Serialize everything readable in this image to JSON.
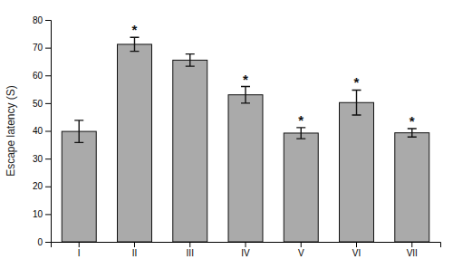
{
  "chart_data": {
    "type": "bar",
    "categories": [
      "I",
      "II",
      "III",
      "IV",
      "V",
      "VI",
      "VII"
    ],
    "values": [
      39.8,
      71.2,
      65.5,
      53.0,
      39.2,
      50.2,
      39.3
    ],
    "errors": [
      4.0,
      2.5,
      2.2,
      3.0,
      2.0,
      4.5,
      1.5
    ],
    "significance": [
      null,
      "*",
      null,
      "*",
      "*",
      "*",
      "*"
    ],
    "color": "#aaaaaa",
    "ylabel": "Escape latency (S)",
    "ylim": [
      0,
      80
    ],
    "yticks": [
      0,
      10,
      20,
      30,
      40,
      50,
      60,
      70,
      80
    ],
    "grid": false
  }
}
